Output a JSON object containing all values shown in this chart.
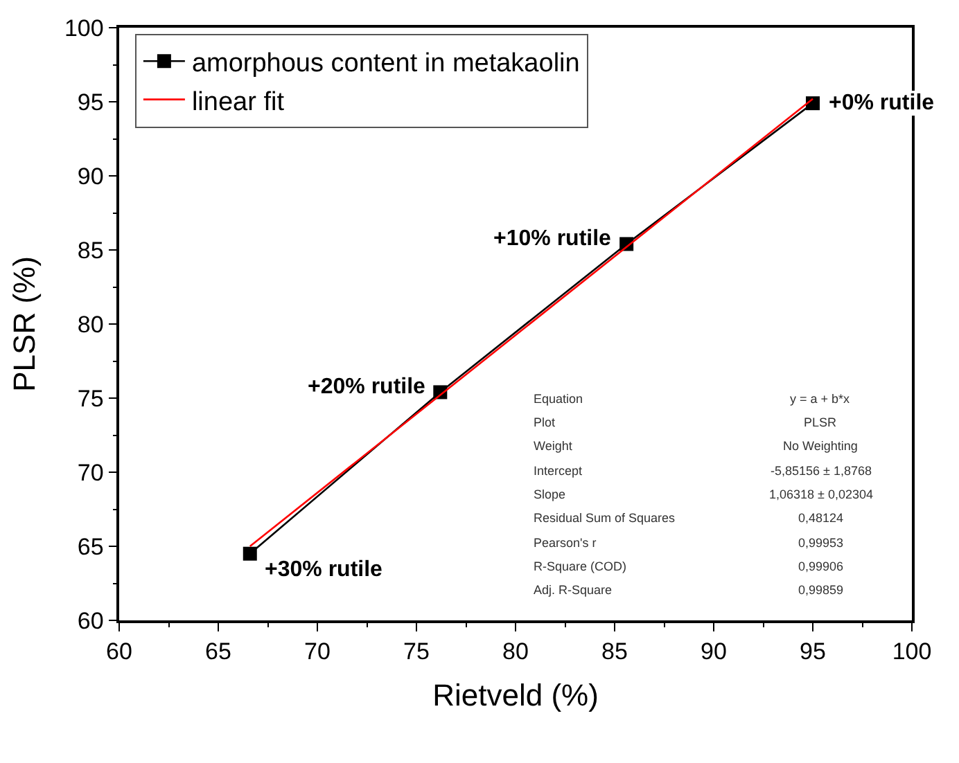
{
  "chart_data": {
    "type": "line",
    "xlabel": "Rietveld (%)",
    "ylabel": "PLSR (%)",
    "xlim": [
      60,
      100
    ],
    "xticks": [
      60,
      65,
      70,
      75,
      80,
      85,
      90,
      95,
      100
    ],
    "ylim": [
      60,
      100
    ],
    "yticks": [
      60,
      65,
      70,
      75,
      80,
      85,
      90,
      95,
      100
    ],
    "legend": "top left",
    "series": [
      {
        "name": "amorphous content in metakaolin",
        "color": "#000000",
        "marker": "square",
        "x": [
          66.6,
          76.2,
          85.6,
          95.0
        ],
        "values": [
          64.5,
          75.4,
          85.4,
          94.9
        ]
      },
      {
        "name": "linear fit",
        "color": "#ff0000",
        "marker": "none",
        "x": [
          66.6,
          95.0
        ],
        "values": [
          65.0,
          95.2
        ]
      }
    ],
    "annotations": [
      {
        "text": "+0% rutile",
        "x": 95.0,
        "y": 94.9
      },
      {
        "text": "+10% rutile",
        "x": 85.6,
        "y": 85.4
      },
      {
        "text": "+20% rutile",
        "x": 76.2,
        "y": 75.4
      },
      {
        "text": "+30% rutile",
        "x": 66.6,
        "y": 64.5
      },
      "Equation",
      "y = a + b*x",
      "Plot",
      "PLSR",
      "Weight",
      "No Weighting",
      "Intercept",
      "-5,85156 ± 1,8768",
      "Slope",
      "1,06318 ± 0,02304",
      "Residual Sum of Squares",
      "0,48124",
      "Pearson's r",
      "0,99953",
      "R-Square (COD)",
      "0,99906",
      "Adj. R-Square",
      "0,99859"
    ]
  }
}
